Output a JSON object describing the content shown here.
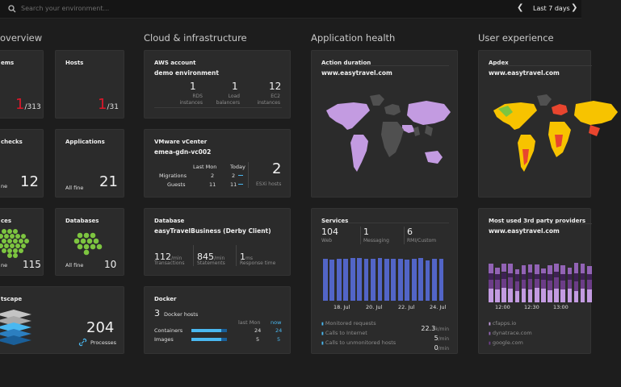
{
  "topbar": {
    "search_placeholder": "Search your environment...",
    "timeframe": "Last 7 days"
  },
  "columns": {
    "overview": "overview",
    "cloud": "Cloud & infrastructure",
    "app": "Application health",
    "ux": "User experience"
  },
  "overview": {
    "problems": {
      "title": "ems",
      "value": "1",
      "total": "/313"
    },
    "hosts": {
      "title": "Hosts",
      "value": "1",
      "total": "/31"
    },
    "checks": {
      "title": "checks",
      "status": "ne",
      "value": "12"
    },
    "applications": {
      "title": "Applications",
      "status": "All fine",
      "value": "21"
    },
    "services": {
      "title": "ces",
      "status": "ne",
      "value": "115"
    },
    "databases": {
      "title": "Databases",
      "status": "All fine",
      "value": "10"
    },
    "smartscape": {
      "title": "tscape",
      "value": "204",
      "label": "Processes"
    }
  },
  "aws": {
    "title": "AWS account",
    "name": "demo environment",
    "stats": [
      {
        "value": "1",
        "label": "RDS instances"
      },
      {
        "value": "1",
        "label": "Load balancers"
      },
      {
        "value": "12",
        "label": "EC2 instances"
      }
    ]
  },
  "vmware": {
    "title": "VMware vCenter",
    "name": "emea-gdn-vc002",
    "col1": "Last Mon",
    "col2": "Today",
    "rows": [
      {
        "label": "Migrations",
        "last": "2",
        "today": "2"
      },
      {
        "label": "Guests",
        "last": "11",
        "today": "11"
      }
    ],
    "esxi_value": "2",
    "esxi_label": "ESXi hosts"
  },
  "database": {
    "title": "Database",
    "name": "easyTravelBusiness (Derby Client)",
    "stats": [
      {
        "value": "112",
        "unit": "/min",
        "label": "Transactions"
      },
      {
        "value": "845",
        "unit": "/min",
        "label": "Statements"
      },
      {
        "value": "1",
        "unit": "ms",
        "label": "Response time"
      }
    ]
  },
  "docker": {
    "title": "Docker",
    "hosts_value": "3",
    "hosts_label": "Docker hosts",
    "col1": "last Mon",
    "col2": "now",
    "rows": [
      {
        "label": "Containers",
        "last": "24",
        "now": "24",
        "fill": 0.85
      },
      {
        "label": "Images",
        "last": "5",
        "now": "5",
        "fill": 0.85
      }
    ]
  },
  "action_duration": {
    "title": "Action duration",
    "site": "www.easytravel.com"
  },
  "services": {
    "title": "Services",
    "stats": [
      {
        "value": "104",
        "label": "Web"
      },
      {
        "value": "1",
        "label": "Messaging"
      },
      {
        "value": "6",
        "label": "RMI/Custom"
      }
    ],
    "bars": [
      0.92,
      0.91,
      0.93,
      0.92,
      0.95,
      0.94,
      0.93,
      0.92,
      0.94,
      0.93,
      0.92,
      0.93,
      0.91,
      0.92,
      0.94,
      0.9,
      0.92,
      0.93
    ],
    "x_labels": [
      "18. Jul",
      "20. Jul",
      "22. Jul",
      "24. Jul"
    ],
    "metrics": [
      {
        "label": "Monitored requests",
        "value": "22.3",
        "unit": "k/min"
      },
      {
        "label": "Calls to Internet",
        "value": "5",
        "unit": "/min"
      },
      {
        "label": "Calls to unmonitored hosts",
        "value": "0",
        "unit": "/min"
      }
    ]
  },
  "apdex": {
    "title": "Apdex",
    "site": "www.easytravel.com"
  },
  "thirdparty": {
    "title": "Most used 3rd party providers",
    "site": "www.easytravel.com",
    "x_labels": [
      "12:00",
      "12:30",
      "13:00"
    ],
    "providers": [
      "cfapps.io",
      "dynatrace.com",
      "google.com"
    ],
    "series_colors": [
      "#c39be1",
      "#6c3d88",
      "#3e2155",
      "#9263b5"
    ],
    "stacks": [
      [
        0.3,
        0.2,
        0.15,
        0.2
      ],
      [
        0.28,
        0.22,
        0.12,
        0.15
      ],
      [
        0.32,
        0.2,
        0.15,
        0.18
      ],
      [
        0.3,
        0.25,
        0.1,
        0.2
      ],
      [
        0.25,
        0.22,
        0.15,
        0.12
      ],
      [
        0.3,
        0.2,
        0.12,
        0.2
      ],
      [
        0.28,
        0.24,
        0.14,
        0.18
      ],
      [
        0.32,
        0.2,
        0.1,
        0.22
      ],
      [
        0.3,
        0.2,
        0.15,
        0.1
      ],
      [
        0.26,
        0.22,
        0.15,
        0.2
      ],
      [
        0.3,
        0.25,
        0.12,
        0.18
      ],
      [
        0.28,
        0.2,
        0.15,
        0.2
      ],
      [
        0.3,
        0.2,
        0.12,
        0.15
      ],
      [
        0.25,
        0.22,
        0.18,
        0.22
      ],
      [
        0.3,
        0.2,
        0.15,
        0.2
      ],
      [
        0.28,
        0.22,
        0.12,
        0.18
      ]
    ]
  }
}
